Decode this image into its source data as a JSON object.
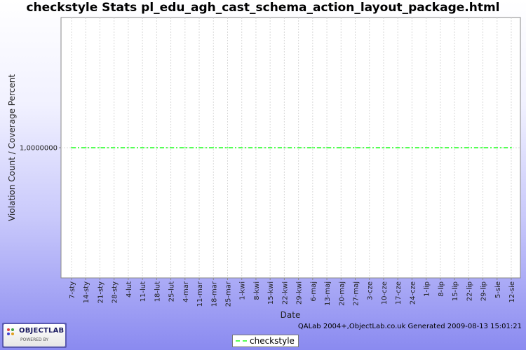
{
  "chart_data": {
    "type": "line",
    "title": "checkstyle  Stats pl_edu_agh_cast_schema_action_layout_package.html",
    "xlabel": "Date",
    "ylabel": "Violation Count / Coverage Percent",
    "x_tick_labels": [
      "7-sty",
      "14-sty",
      "21-sty",
      "28-sty",
      "4-lut",
      "11-lut",
      "18-lut",
      "25-lut",
      "4-mar",
      "11-mar",
      "18-mar",
      "25-mar",
      "1-kwi",
      "8-kwi",
      "15-kwi",
      "22-kwi",
      "29-kwi",
      "6-maj",
      "13-maj",
      "20-maj",
      "27-maj",
      "3-cze",
      "10-cze",
      "17-cze",
      "24-cze",
      "1-lip",
      "8-lip",
      "15-lip",
      "22-lip",
      "29-lip",
      "5-sie",
      "12-sie"
    ],
    "y_tick_labels": [
      "1,0000000"
    ],
    "ylim": [
      0,
      2
    ],
    "grid": true,
    "legend_position": "bottom",
    "series": [
      {
        "name": "checkstyle",
        "color": "#55ff55",
        "style": "dashed",
        "x": [
          "7-sty",
          "14-sty",
          "21-sty",
          "28-sty",
          "4-lut",
          "11-lut",
          "18-lut",
          "25-lut",
          "4-mar",
          "11-mar",
          "18-mar",
          "25-mar",
          "1-kwi",
          "8-kwi",
          "15-kwi",
          "22-kwi",
          "29-kwi",
          "6-maj",
          "13-maj",
          "20-maj",
          "27-maj",
          "3-cze",
          "10-cze",
          "17-cze",
          "24-cze",
          "1-lip",
          "8-lip",
          "15-lip",
          "22-lip",
          "29-lip",
          "5-sie",
          "12-sie"
        ],
        "values": [
          1,
          1,
          1,
          1,
          1,
          1,
          1,
          1,
          1,
          1,
          1,
          1,
          1,
          1,
          1,
          1,
          1,
          1,
          1,
          1,
          1,
          1,
          1,
          1,
          1,
          1,
          1,
          1,
          1,
          1,
          1,
          1
        ]
      }
    ]
  },
  "footer": {
    "generated_text": "QALab 2004+,ObjectLab.co.uk Generated 2009-08-13 15:01:21",
    "logo_text": "OBJECTLAB",
    "logo_sub": "POWERED BY"
  }
}
